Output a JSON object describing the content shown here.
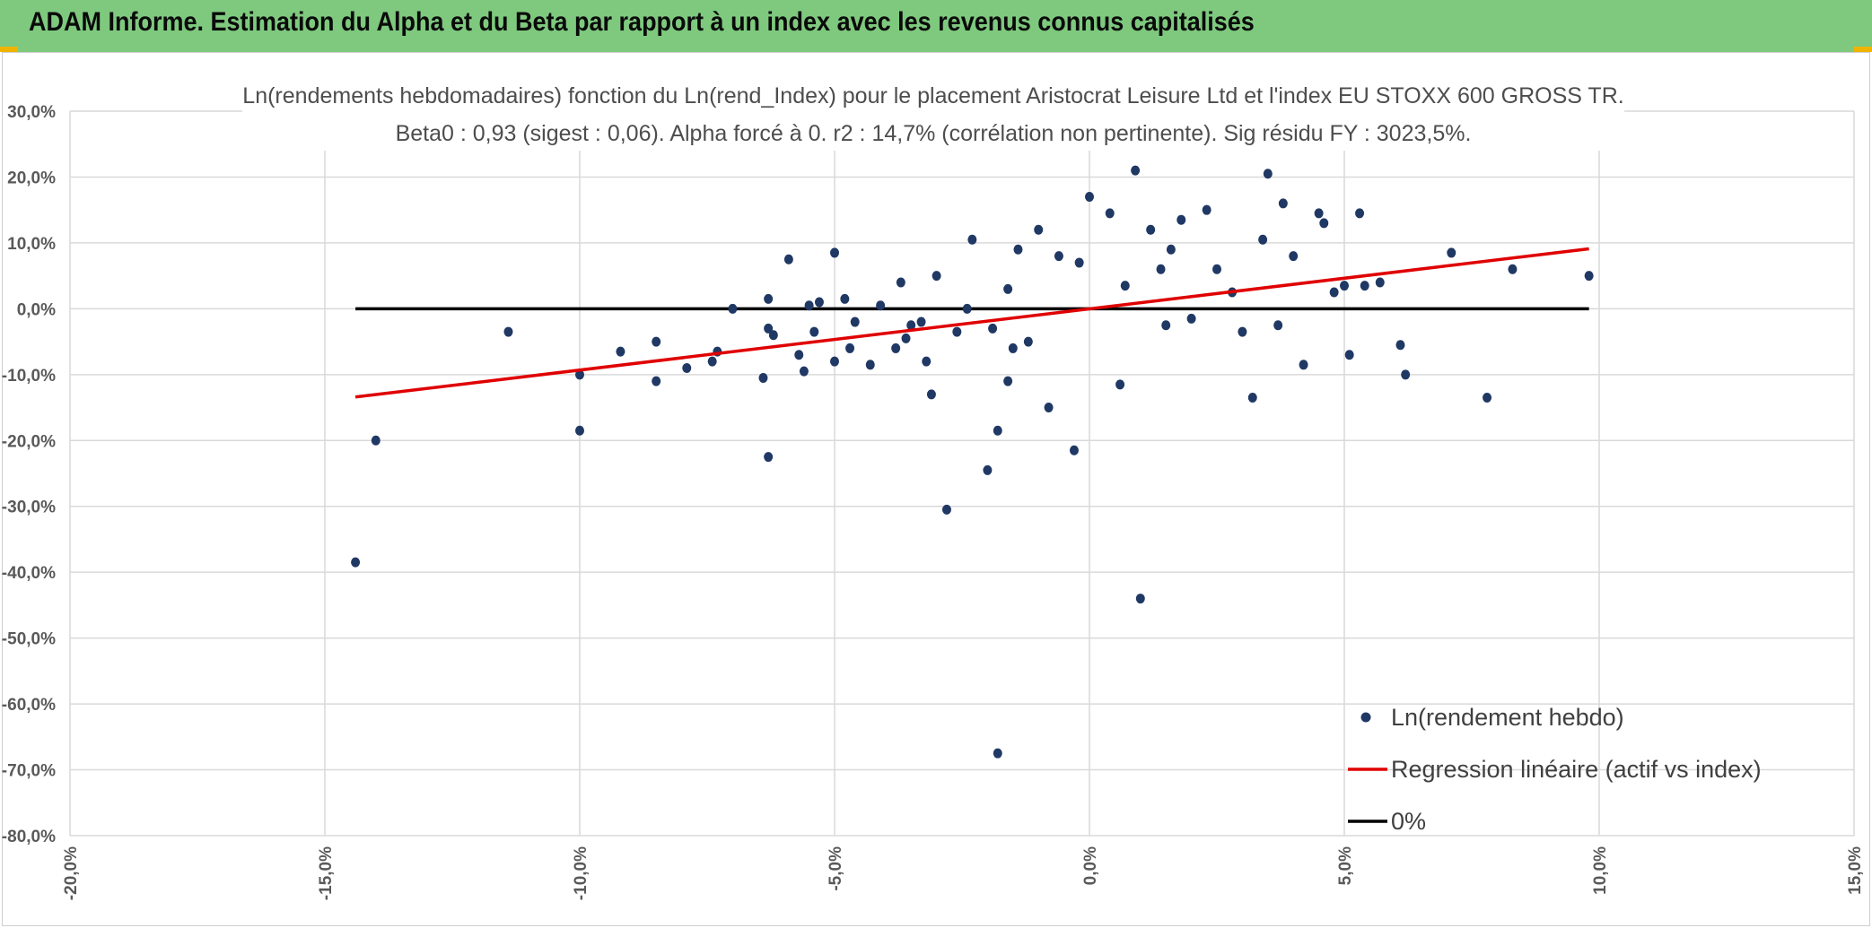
{
  "header": {
    "title": "ADAM Informe. Estimation du Alpha et du Beta par rapport à un index avec les revenus connus capitalisés"
  },
  "colors": {
    "header_bg": "#7ec97e",
    "points": "#203864",
    "regression": "#e00000",
    "zero_line": "#000000",
    "accent": "#f0b400"
  },
  "chart_data": {
    "type": "scatter",
    "title_line1": "Ln(rendements hebdomadaires) fonction du Ln(rend_Index) pour le placement Aristocrat Leisure Ltd et l'index EU STOXX 600 GROSS TR.",
    "title_line2": "Beta0 : 0,93 (sigest : 0,06). Alpha forcé à 0. r2 : 14,7% (corrélation non pertinente). Sig résidu FY : 3023,5%.",
    "xlim": [
      -20,
      15
    ],
    "ylim": [
      -80,
      30
    ],
    "x_ticks": [
      "-20,0%",
      "-15,0%",
      "-10,0%",
      "-5,0%",
      "0,0%",
      "5,0%",
      "10,0%",
      "15,0%"
    ],
    "x_tick_values": [
      -20,
      -15,
      -10,
      -5,
      0,
      5,
      10,
      15
    ],
    "y_ticks": [
      "30,0%",
      "20,0%",
      "10,0%",
      "0,0%",
      "-10,0%",
      "-20,0%",
      "-30,0%",
      "-40,0%",
      "-50,0%",
      "-60,0%",
      "-70,0%",
      "-80,0%"
    ],
    "y_tick_values": [
      30,
      20,
      10,
      0,
      -10,
      -20,
      -30,
      -40,
      -50,
      -60,
      -70,
      -80
    ],
    "grid": true,
    "legend_position": "bottom-right",
    "series": [
      {
        "name": "Ln(rendement hebdo)",
        "kind": "points",
        "x": [
          -14.4,
          -14.0,
          -11.4,
          -10.0,
          -10.0,
          -9.2,
          -8.5,
          -8.5,
          -7.9,
          -7.4,
          -7.3,
          -7.0,
          -6.4,
          -6.3,
          -6.3,
          -6.3,
          -6.2,
          -5.9,
          -5.7,
          -5.6,
          -5.5,
          -5.4,
          -5.3,
          -5.0,
          -5.0,
          -4.8,
          -4.7,
          -4.6,
          -4.3,
          -4.1,
          -3.8,
          -3.7,
          -3.6,
          -3.5,
          -3.3,
          -3.2,
          -3.1,
          -3.0,
          -2.8,
          -2.6,
          -2.4,
          -2.3,
          -2.0,
          -1.9,
          -1.8,
          -1.8,
          -1.6,
          -1.6,
          -1.5,
          -1.4,
          -1.2,
          -1.0,
          -0.8,
          -0.6,
          -0.3,
          -0.2,
          0.0,
          0.4,
          0.6,
          0.7,
          0.9,
          1.0,
          1.2,
          1.4,
          1.5,
          1.6,
          1.8,
          2.0,
          2.3,
          2.5,
          2.8,
          3.0,
          3.2,
          3.4,
          3.5,
          3.7,
          3.8,
          4.0,
          4.2,
          4.5,
          4.6,
          4.8,
          5.0,
          5.1,
          5.3,
          5.4,
          5.7,
          6.1,
          6.2,
          7.1,
          7.8,
          8.3,
          9.8
        ],
        "y": [
          -38.5,
          -20.0,
          -3.5,
          -18.5,
          -10.0,
          -6.5,
          -11.0,
          -5.0,
          -9.0,
          -8.0,
          -6.5,
          0.0,
          -10.5,
          -22.5,
          1.5,
          -3.0,
          -4.0,
          7.5,
          -7.0,
          -9.5,
          0.5,
          -3.5,
          1.0,
          8.5,
          -8.0,
          1.5,
          -6.0,
          -2.0,
          -8.5,
          0.5,
          -6.0,
          4.0,
          -4.5,
          -2.5,
          -2.0,
          -8.0,
          -13.0,
          5.0,
          -30.5,
          -3.5,
          0.0,
          10.5,
          -24.5,
          -3.0,
          -67.5,
          -18.5,
          -11.0,
          3.0,
          -6.0,
          9.0,
          -5.0,
          12.0,
          -15.0,
          8.0,
          -21.5,
          7.0,
          17.0,
          14.5,
          -11.5,
          3.5,
          21.0,
          -44.0,
          12.0,
          6.0,
          -2.5,
          9.0,
          13.5,
          -1.5,
          15.0,
          6.0,
          2.5,
          -3.5,
          -13.5,
          10.5,
          20.5,
          -2.5,
          16.0,
          8.0,
          -8.5,
          14.5,
          13.0,
          2.5,
          3.5,
          -7.0,
          14.5,
          3.5,
          4.0,
          -5.5,
          -10.0,
          8.5,
          -13.5,
          6.0,
          5.0
        ]
      },
      {
        "name": "Regression linéaire (actif vs index)",
        "kind": "line",
        "x": [
          -14.4,
          9.8
        ],
        "y": [
          -13.4,
          9.1
        ]
      },
      {
        "name": "0%",
        "kind": "line",
        "x": [
          -14.4,
          9.8
        ],
        "y": [
          0,
          0
        ]
      }
    ]
  }
}
